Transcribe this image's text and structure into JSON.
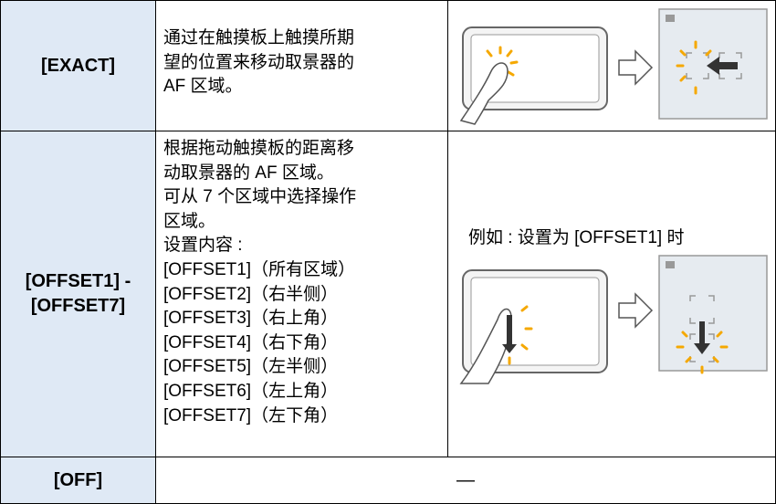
{
  "table": {
    "rows": [
      {
        "label": [
          "[EXACT]"
        ],
        "description": [
          "通过在触摸板上触摸所期",
          "望的位置来移动取景器的",
          "AF 区域。"
        ]
      },
      {
        "label": [
          "[OFFSET1] -",
          "[OFFSET7]"
        ],
        "description": [
          "根据拖动触摸板的距离移",
          "动取景器的 AF 区域。",
          "可从 7 个区域中选择操作",
          "区域。",
          "设置内容 :",
          "[OFFSET1]（所有区域）",
          "[OFFSET2]（右半侧）",
          "[OFFSET3]（右上角）",
          "[OFFSET4]（右下角）",
          "[OFFSET5]（左半侧）",
          "[OFFSET6]（左上角）",
          "[OFFSET7]（左下角）"
        ],
        "caption": "例如 : 设置为 [OFFSET1] 时"
      },
      {
        "label": [
          "[OFF]"
        ],
        "description": [
          "—"
        ]
      }
    ]
  }
}
